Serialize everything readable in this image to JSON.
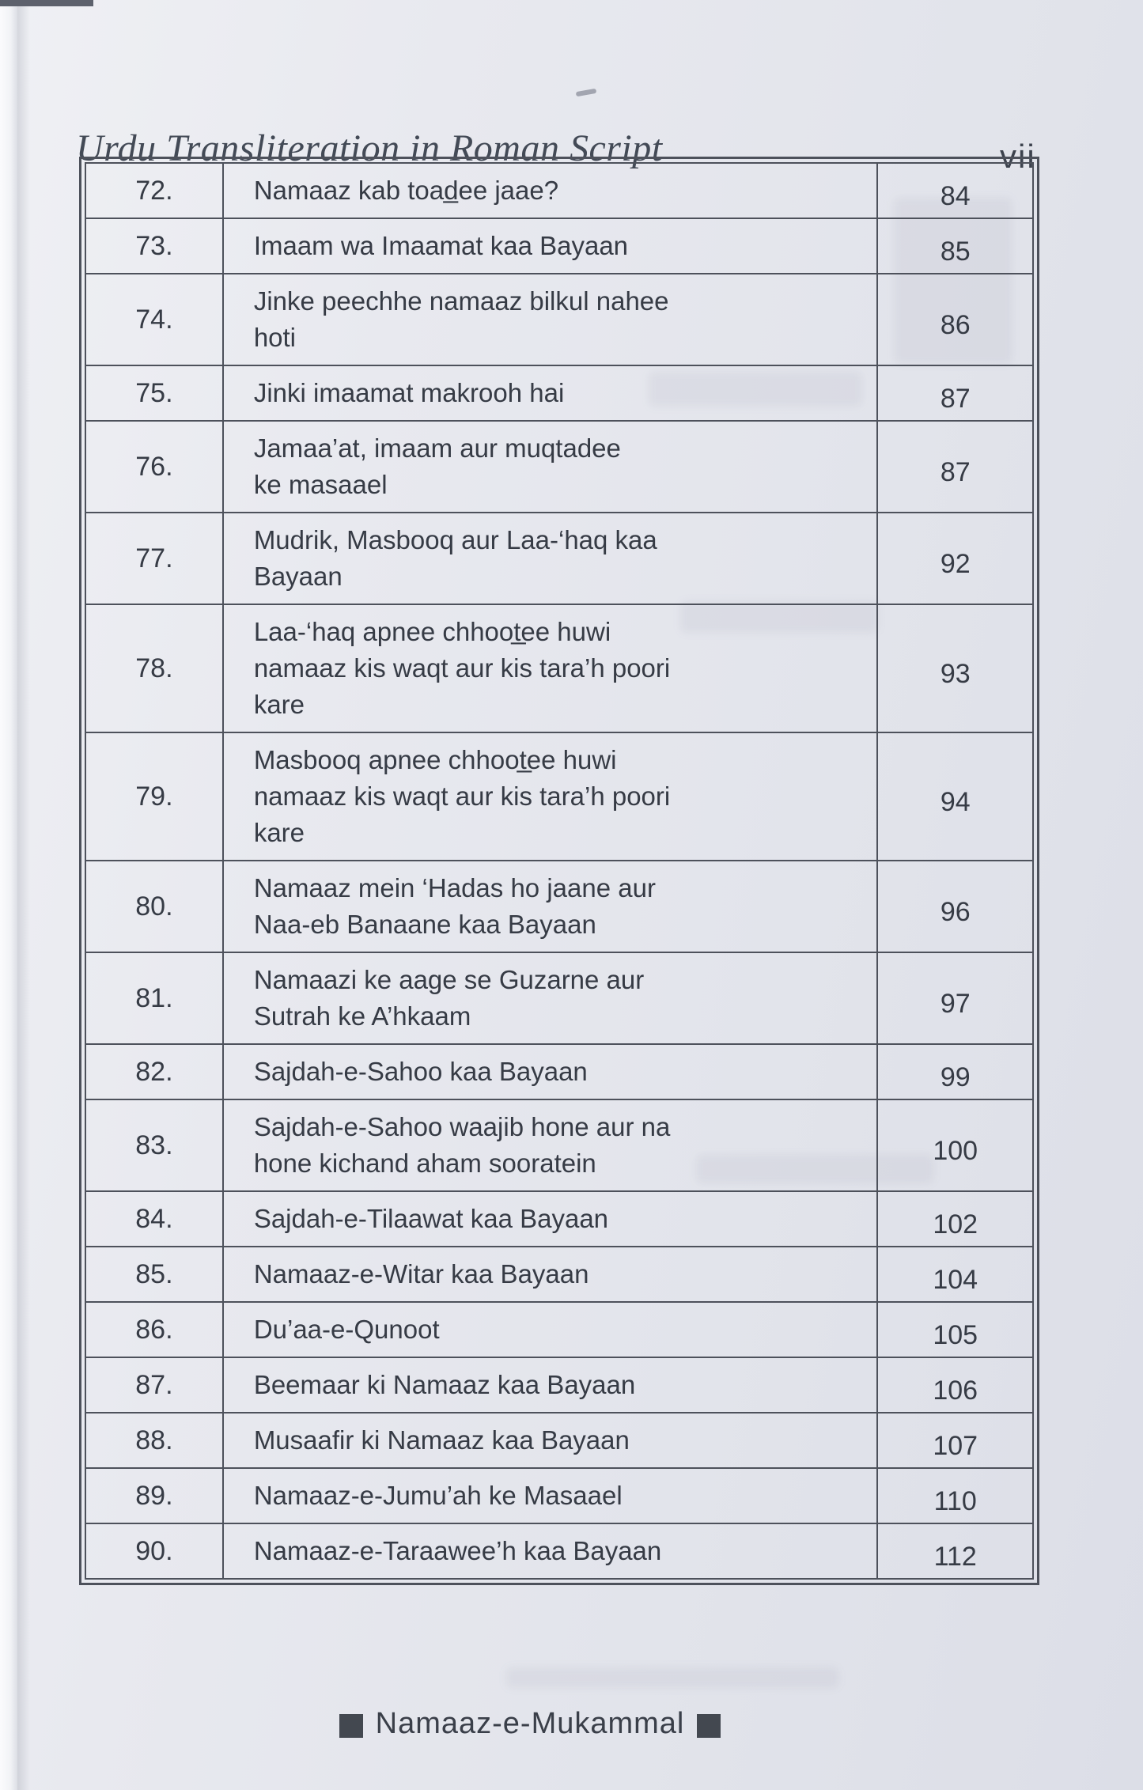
{
  "header": {
    "title": "Urdu Transliteration in Roman Script",
    "folio": "vii"
  },
  "toc": {
    "rows": [
      {
        "no": "72.",
        "title": "Namaaz kab toad̲ee jaae?",
        "page": "84"
      },
      {
        "no": "73.",
        "title": "Imaam wa Imaamat kaa Bayaan",
        "page": "85"
      },
      {
        "no": "74.",
        "title": "Jinke peechhe namaaz bilkul nahee\nhoti",
        "page": "86"
      },
      {
        "no": "75.",
        "title": "Jinki imaamat makrooh hai",
        "page": "87"
      },
      {
        "no": "76.",
        "title": "Jamaa’at, imaam aur muqtadee\nke masaael",
        "page": "87"
      },
      {
        "no": "77.",
        "title": "Mudrik, Masbooq aur Laa-‘haq kaa\nBayaan",
        "page": "92"
      },
      {
        "no": "78.",
        "title": "Laa-‘haq apnee chhoot̲ee huwi\nnamaaz kis waqt aur kis tara’h poori\nkare",
        "page": "93"
      },
      {
        "no": "79.",
        "title": "Masbooq apnee chhoot̲ee huwi\nnamaaz kis waqt aur kis tara’h poori\nkare",
        "page": "94"
      },
      {
        "no": "80.",
        "title": "Namaaz mein ‘Hadas ho jaane aur\nNaa-eb Banaane kaa Bayaan",
        "page": "96"
      },
      {
        "no": "81.",
        "title": "Namaazi ke aage se Guzarne aur\nSutrah ke A’hkaam",
        "page": "97"
      },
      {
        "no": "82.",
        "title": "Sajdah-e-Sahoo kaa Bayaan",
        "page": "99"
      },
      {
        "no": "83.",
        "title": "Sajdah-e-Sahoo waajib hone aur na\nhone kichand aham sooratein",
        "page": "100"
      },
      {
        "no": "84.",
        "title": "Sajdah-e-Tilaawat kaa Bayaan",
        "page": "102"
      },
      {
        "no": "85.",
        "title": "Namaaz-e-Witar kaa Bayaan",
        "page": "104"
      },
      {
        "no": "86.",
        "title": "Du’aa-e-Qunoot",
        "page": "105"
      },
      {
        "no": "87.",
        "title": "Beemaar ki Namaaz kaa Bayaan",
        "page": "106"
      },
      {
        "no": "88.",
        "title": "Musaafir ki Namaaz kaa Bayaan",
        "page": "107"
      },
      {
        "no": "89.",
        "title": "Namaaz-e-Jumu’ah ke Masaael",
        "page": "110"
      },
      {
        "no": "90.",
        "title": "Namaaz-e-Taraawee’h kaa Bayaan",
        "page": "112"
      }
    ]
  },
  "footer": {
    "text": "Namaaz-e-Mukammal"
  },
  "colors": {
    "paper": "#e4e6ec",
    "ink": "#363b45",
    "table_line": "#4d515b"
  }
}
